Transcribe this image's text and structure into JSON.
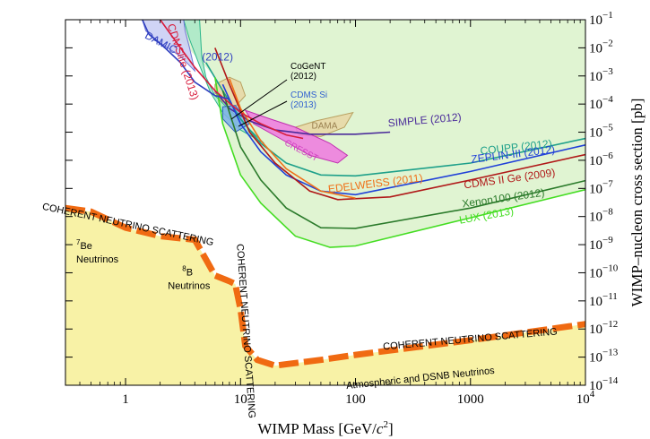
{
  "chart_data": {
    "type": "line",
    "title": "",
    "xlabel": "WIMP Mass [GeV/c²]",
    "ylabel": "WIMP–nucleon cross section [pb]",
    "x_scale": "log",
    "y_scale": "log",
    "xlim": [
      0.3,
      10000
    ],
    "ylim_pb": [
      1e-14,
      0.1
    ],
    "x_ticks": [
      {
        "value": 1,
        "label": "1"
      },
      {
        "value": 10,
        "label": "10"
      },
      {
        "value": 100,
        "label": "100"
      },
      {
        "value": 1000,
        "label": "1000"
      },
      {
        "value": 10000,
        "label": "10",
        "sup": "4"
      }
    ],
    "y_ticks": [
      {
        "value": 0.1,
        "base": "10",
        "sup": "−1"
      },
      {
        "value": 0.01,
        "base": "10",
        "sup": "−2"
      },
      {
        "value": 0.001,
        "base": "10",
        "sup": "−3"
      },
      {
        "value": 0.0001,
        "base": "10",
        "sup": "−4"
      },
      {
        "value": 1e-05,
        "base": "10",
        "sup": "−5"
      },
      {
        "value": 1e-06,
        "base": "10",
        "sup": "−6"
      },
      {
        "value": 1e-07,
        "base": "10",
        "sup": "−7"
      },
      {
        "value": 1e-08,
        "base": "10",
        "sup": "−8"
      },
      {
        "value": 1e-09,
        "base": "10",
        "sup": "−9"
      },
      {
        "value": 1e-10,
        "base": "10",
        "sup": "−10"
      },
      {
        "value": 1e-11,
        "base": "10",
        "sup": "−11"
      },
      {
        "value": 1e-12,
        "base": "10",
        "sup": "−12"
      },
      {
        "value": 1e-13,
        "base": "10",
        "sup": "−13"
      },
      {
        "value": 1e-14,
        "base": "10",
        "sup": "−14"
      }
    ],
    "grid": false,
    "legend": "inline labels",
    "colors": {
      "excluded_region": "#e0f4d2",
      "neutrino_floor_fill": "#f8f2a6",
      "neutrino_band": "#f06a12"
    },
    "regions": [
      {
        "name": "CDMSlite (2013)",
        "fill": "#a8e8c8",
        "stroke": "#2bb58a",
        "points": [
          [
            3.2,
            0.1
          ],
          [
            3.6,
            0.02
          ],
          [
            4.3,
            0.003
          ],
          [
            5.5,
            0.00025
          ],
          [
            7,
            5e-05
          ],
          [
            10,
            1.2e-05
          ],
          [
            16,
            4e-06
          ],
          [
            6,
            0.0002
          ],
          [
            5,
            0.0009
          ],
          [
            4.6,
            0.005
          ],
          [
            4.4,
            0.1
          ]
        ]
      },
      {
        "name": "DAMIC (2012)",
        "fill": "#c8ccf4",
        "stroke": "#7075d8",
        "points": [
          [
            1.4,
            0.1
          ],
          [
            1.5,
            0.04
          ],
          [
            2,
            0.015
          ],
          [
            3,
            0.005
          ],
          [
            4,
            0.0015
          ],
          [
            3.6,
            0.01
          ],
          [
            3.3,
            0.04
          ],
          [
            3.2,
            0.1
          ]
        ]
      },
      {
        "name": "DAMA",
        "fill": "#e8d6a4",
        "stroke": "#b8a060",
        "points": [
          [
            6,
            0.0005
          ],
          [
            8,
            0.0009
          ],
          [
            10,
            0.0006
          ],
          [
            11,
            0.0002
          ],
          [
            9,
            8e-05
          ],
          [
            7,
            0.00012
          ],
          [
            6,
            0.00025
          ]
        ]
      },
      {
        "name": "DAMA",
        "fill": "#e8d6a4",
        "stroke": "#b8a060",
        "points": [
          [
            30,
            1.5e-05
          ],
          [
            45,
            2.5e-05
          ],
          [
            75,
            4e-05
          ],
          [
            95,
            5e-05
          ],
          [
            80,
            1.5e-05
          ],
          [
            50,
            7e-06
          ],
          [
            32,
            8e-06
          ]
        ]
      },
      {
        "name": "CRESST",
        "fill": "#ee78e0",
        "stroke": "#c030b0",
        "points": [
          [
            11,
            6e-05
          ],
          [
            18,
            3e-05
          ],
          [
            30,
            1.5e-05
          ],
          [
            60,
            4e-06
          ],
          [
            85,
            1.5e-06
          ],
          [
            70,
            8e-07
          ],
          [
            40,
            1.5e-06
          ],
          [
            22,
            6e-06
          ],
          [
            13,
            2e-05
          ]
        ]
      },
      {
        "name": "CDMS Si (2013)",
        "fill": "#7db0e8",
        "stroke": "#3060c0",
        "points": [
          [
            7,
            8e-05
          ],
          [
            9,
            9e-05
          ],
          [
            12,
            2e-05
          ],
          [
            9,
            1e-05
          ],
          [
            7,
            3e-05
          ]
        ]
      }
    ],
    "series": [
      {
        "name": "SIMPLE (2012)",
        "color": "#4a2a9a",
        "points": [
          [
            6,
            0.0003
          ],
          [
            8,
            7e-05
          ],
          [
            12,
            2.5e-05
          ],
          [
            20,
            1.2e-05
          ],
          [
            40,
            8.5e-06
          ],
          [
            100,
            8.5e-06
          ],
          [
            200,
            1e-05
          ]
        ]
      },
      {
        "name": "COUPP (2012)",
        "color": "#1ea08a",
        "points": [
          [
            5,
            0.003
          ],
          [
            7,
            0.0003
          ],
          [
            10,
            3e-05
          ],
          [
            15,
            4e-06
          ],
          [
            25,
            8e-07
          ],
          [
            50,
            3e-07
          ],
          [
            100,
            2.8e-07
          ],
          [
            1000,
            8e-07
          ],
          [
            10000,
            6e-06
          ]
        ]
      },
      {
        "name": "ZEPLIN-III (2012)",
        "color": "#2040d8",
        "points": [
          [
            7,
            0.0005
          ],
          [
            10,
            2e-05
          ],
          [
            15,
            2e-06
          ],
          [
            25,
            3e-07
          ],
          [
            50,
            8e-08
          ],
          [
            100,
            6e-08
          ],
          [
            1000,
            4e-07
          ],
          [
            10000,
            3.5e-06
          ]
        ]
      },
      {
        "name": "CDMS II Ge (2009)",
        "color": "#b01818",
        "points": [
          [
            6,
            0.01
          ],
          [
            8,
            0.0005
          ],
          [
            12,
            1e-05
          ],
          [
            20,
            8e-07
          ],
          [
            40,
            8e-08
          ],
          [
            70,
            4e-08
          ],
          [
            200,
            5e-08
          ],
          [
            1000,
            2e-07
          ],
          [
            10000,
            1.6e-06
          ]
        ]
      },
      {
        "name": "EDELWEISS (2011)",
        "color": "#f07018",
        "points": [
          [
            8,
            0.0008
          ],
          [
            10,
            7e-05
          ],
          [
            15,
            5e-06
          ],
          [
            25,
            5e-07
          ],
          [
            50,
            8e-08
          ],
          [
            100,
            4.5e-08
          ]
        ]
      },
      {
        "name": "Xenon100 (2012)",
        "color": "#2a7a2a",
        "points": [
          [
            7,
            0.0003
          ],
          [
            8,
            5e-05
          ],
          [
            10,
            3e-06
          ],
          [
            15,
            2e-07
          ],
          [
            25,
            2e-08
          ],
          [
            50,
            4e-09
          ],
          [
            100,
            3.8e-09
          ],
          [
            1000,
            2e-08
          ],
          [
            10000,
            1.9e-07
          ]
        ]
      },
      {
        "name": "LUX (2013)",
        "color": "#44dd22",
        "points": [
          [
            6,
            0.0009
          ],
          [
            7,
            2e-05
          ],
          [
            10,
            3e-07
          ],
          [
            15,
            3e-08
          ],
          [
            30,
            2e-09
          ],
          [
            60,
            8e-10
          ],
          [
            100,
            9e-10
          ],
          [
            1000,
            9e-09
          ],
          [
            10000,
            9e-08
          ]
        ]
      },
      {
        "name": "CDMSlite (2013) limit",
        "color": "#d81c3c",
        "points": [
          [
            2,
            0.1
          ],
          [
            3,
            0.01
          ],
          [
            4,
            0.002
          ],
          [
            6,
            0.0003
          ],
          [
            10,
            5e-05
          ],
          [
            15,
            2e-05
          ],
          [
            25,
            8e-06
          ],
          [
            35,
            6e-06
          ]
        ]
      },
      {
        "name": "DAMIC (2012) limit",
        "color": "#3040c0",
        "points": [
          [
            1.4,
            0.1
          ],
          [
            1.6,
            0.03
          ],
          [
            2.2,
            0.01
          ],
          [
            3,
            0.003
          ],
          [
            4,
            0.0006
          ],
          [
            6,
            0.0002
          ],
          [
            8,
            0.00015
          ]
        ]
      }
    ],
    "neutrino_floor": {
      "name": "COHERENT NEUTRINO SCATTERING",
      "points": [
        [
          0.3,
          2e-08
        ],
        [
          0.5,
          1.5e-08
        ],
        [
          1,
          4e-09
        ],
        [
          2,
          2e-09
        ],
        [
          4,
          1.5e-09
        ],
        [
          5,
          3e-10
        ],
        [
          6,
          8e-11
        ],
        [
          8,
          5e-11
        ],
        [
          9,
          4e-11
        ],
        [
          10,
          5e-12
        ],
        [
          11,
          2.5e-13
        ],
        [
          14,
          8e-14
        ],
        [
          20,
          5e-14
        ],
        [
          50,
          8e-14
        ],
        [
          100,
          1.2e-13
        ],
        [
          1000,
          4e-13
        ],
        [
          10000,
          1.5e-12
        ]
      ]
    },
    "annotations": [
      {
        "id": "cogent",
        "text_lines": [
          "CoGeNT",
          "(2012)"
        ],
        "color": "#000000"
      },
      {
        "id": "cdms_si",
        "text_lines": [
          "CDMS Si",
          "(2013)"
        ],
        "color": "#3060d0"
      },
      {
        "id": "dama",
        "text": "DAMA",
        "color": "#9a8050"
      },
      {
        "id": "cresst",
        "text": "CRESST",
        "color": "#d040c0"
      },
      {
        "id": "be7",
        "text": "Be",
        "sup": "7",
        "line2": "Neutrinos"
      },
      {
        "id": "b8",
        "text": "B",
        "sup": "8",
        "line2": "Neutrinos"
      },
      {
        "id": "atm",
        "text": "Atmospheric and DSNB Neutrinos"
      }
    ],
    "inline_labels": [
      {
        "series": "SIMPLE (2012)",
        "text": "SIMPLE (2012)",
        "color": "#4a2a9a"
      },
      {
        "series": "COUPP (2012)",
        "text": "COUPP (2012)",
        "color": "#1ea08a"
      },
      {
        "series": "ZEPLIN-III (2012)",
        "text": "ZEPLIN-III (2012)",
        "color": "#2040d8"
      },
      {
        "series": "CDMS II Ge (2009)",
        "text": "CDMS II Ge (2009)",
        "color": "#b01818"
      },
      {
        "series": "EDELWEISS (2011)",
        "text": "EDELWEISS (2011)",
        "color": "#f07018"
      },
      {
        "series": "Xenon100 (2012)",
        "text": "Xenon100 (2012)",
        "color": "#2a7a2a"
      },
      {
        "series": "LUX (2013)",
        "text": "LUX (2013)",
        "color": "#44dd22"
      },
      {
        "series": "CDMSlite (2013)",
        "text": "CDMSlite (2013)",
        "color": "#d81c3c"
      },
      {
        "series": "DAMIC (2012)",
        "text": "DAMIC",
        "color": "#3040c0"
      },
      {
        "series": "DAMIC (2012)",
        "text": "(2012)",
        "color": "#3040c0"
      }
    ]
  }
}
